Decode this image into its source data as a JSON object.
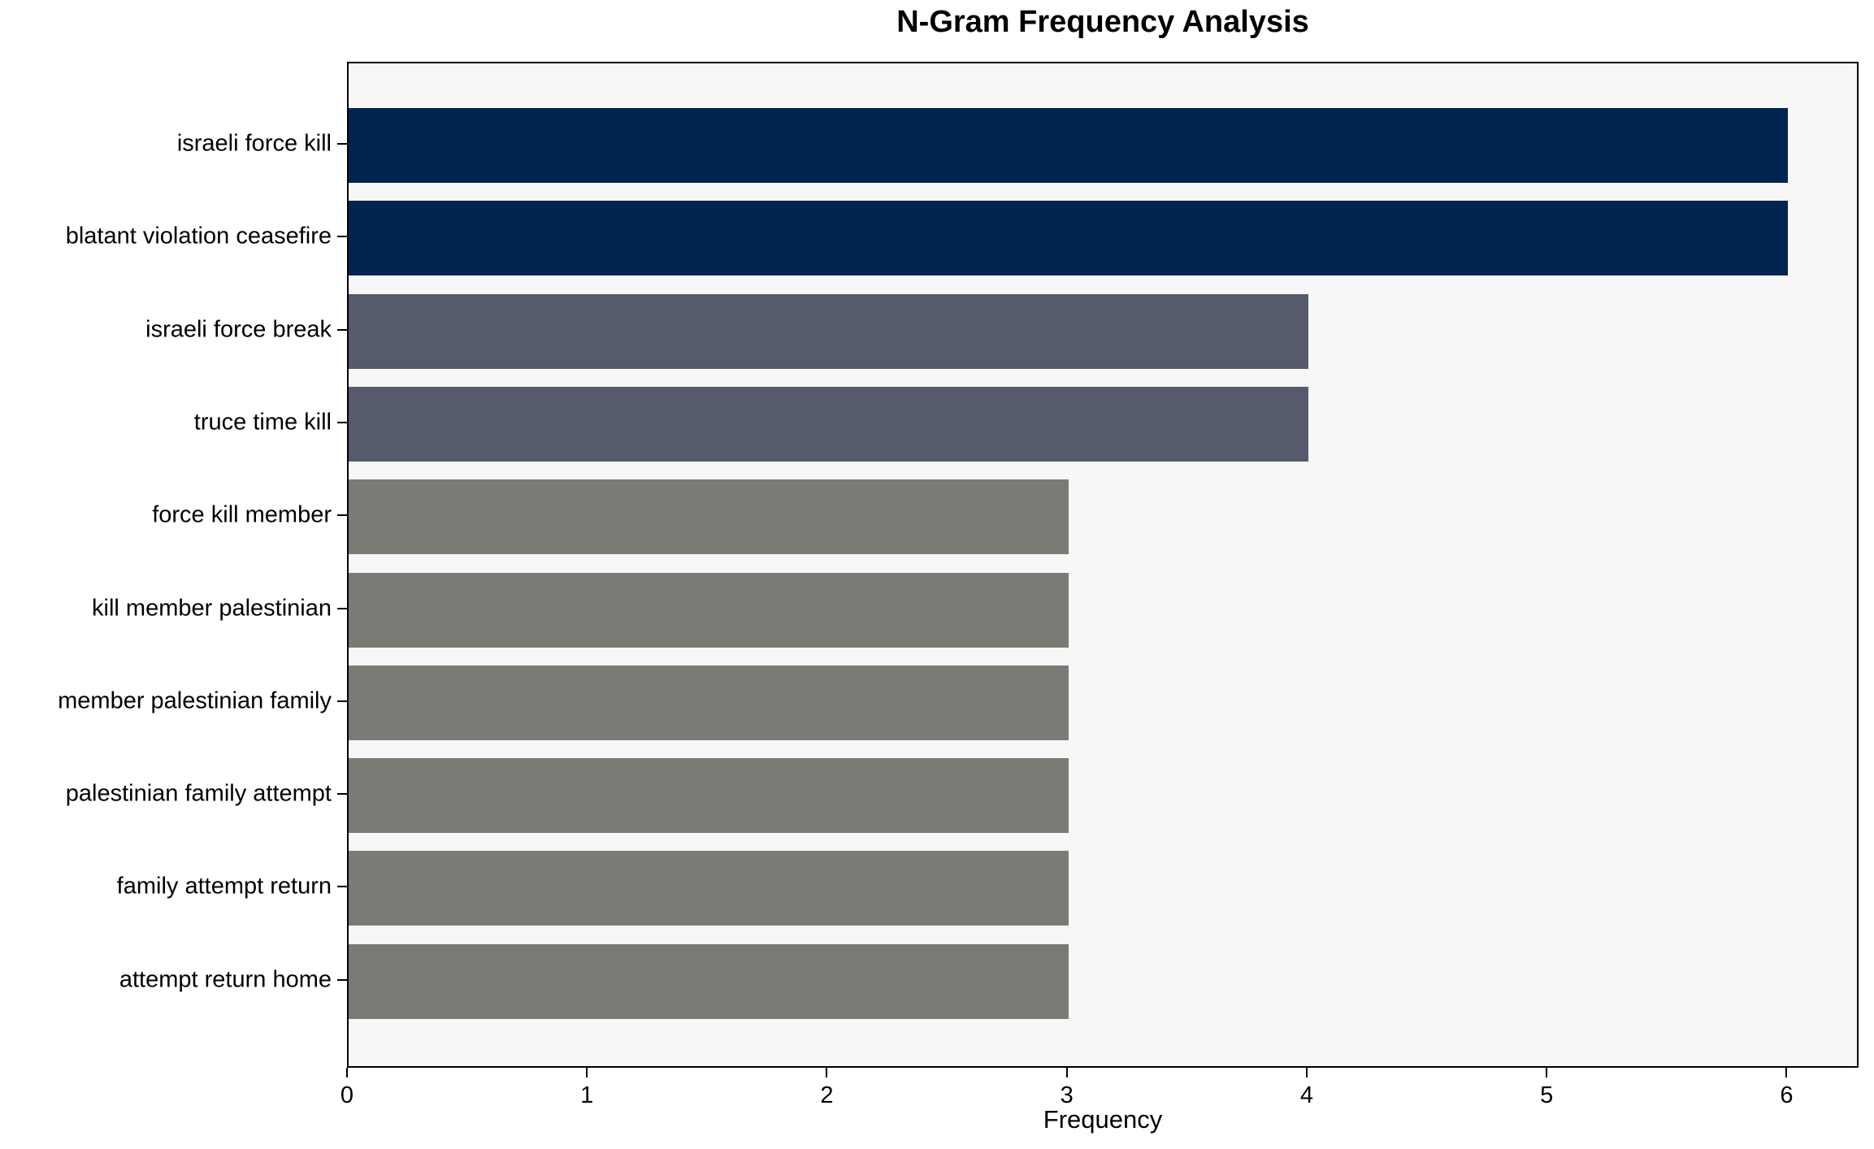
{
  "chart_data": {
    "type": "bar",
    "orientation": "horizontal",
    "title": "N-Gram Frequency Analysis",
    "xlabel": "Frequency",
    "ylabel": "",
    "categories": [
      "israeli force kill",
      "blatant violation ceasefire",
      "israeli force break",
      "truce time kill",
      "force kill member",
      "kill member palestinian",
      "member palestinian family",
      "palestinian family attempt",
      "family attempt return",
      "attempt return home"
    ],
    "values": [
      6,
      6,
      4,
      4,
      3,
      3,
      3,
      3,
      3,
      3
    ],
    "bar_colors": [
      "#00254e",
      "#00254e",
      "#565b6b",
      "#565b6b",
      "#7b7a75",
      "#7b7a75",
      "#7b7a75",
      "#7b7a75",
      "#7b7a75",
      "#7b7a75"
    ],
    "xticks": [
      0,
      1,
      2,
      3,
      4,
      5,
      6
    ],
    "xlim": [
      0,
      6.3
    ],
    "grid": false,
    "legend": false,
    "plot_bg": "#f7f7f7",
    "frame_color": "#000000"
  }
}
